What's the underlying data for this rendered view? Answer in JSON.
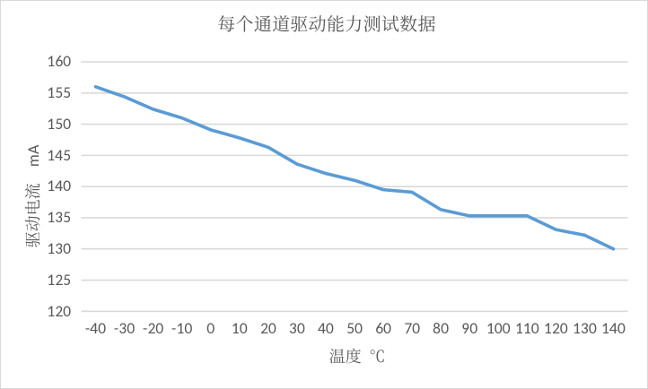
{
  "chart_data": {
    "type": "line",
    "title": "每个通道驱动能力测试数据",
    "xlabel": "温度 ℃",
    "ylabel": "驱动电流　mA",
    "categories": [
      "-40",
      "-30",
      "-20",
      "-10",
      "0",
      "10",
      "20",
      "30",
      "40",
      "50",
      "60",
      "70",
      "80",
      "90",
      "100",
      "110",
      "120",
      "130",
      "140"
    ],
    "values": [
      156,
      154.4,
      152.4,
      151,
      149.1,
      147.8,
      146.3,
      143.6,
      142.1,
      141,
      139.5,
      139.1,
      136.3,
      135.3,
      135.3,
      135.3,
      133.1,
      132.2,
      130
    ],
    "ylim": [
      120,
      160
    ],
    "ytick_step": 5,
    "ytick_labels": [
      "160",
      "155",
      "150",
      "145",
      "140",
      "135",
      "130",
      "125",
      "120"
    ],
    "grid": "horizontal",
    "legend": "none",
    "colors": {
      "line": "#5b9bd5",
      "gridline": "#d9d9d9",
      "text": "#595959",
      "chart_border": "#d9d9d9",
      "background": "#ffffff"
    }
  }
}
